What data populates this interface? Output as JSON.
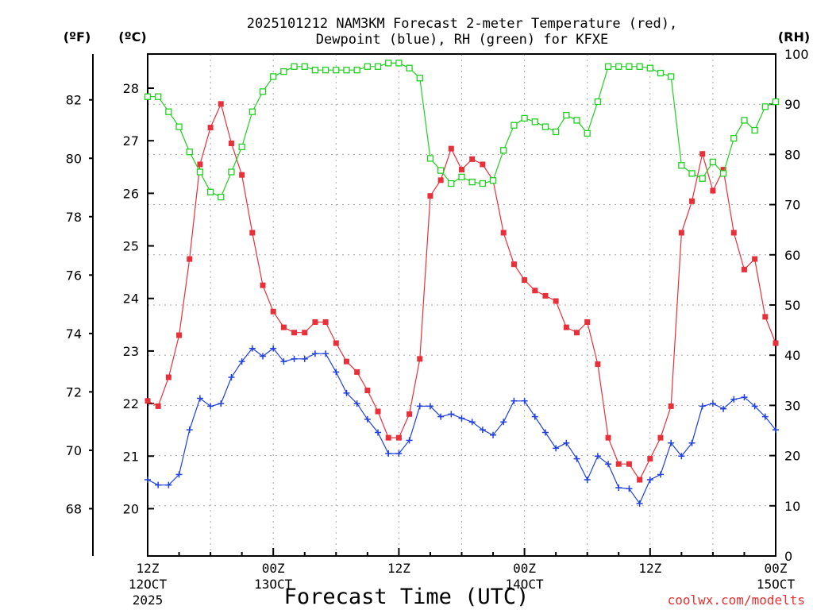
{
  "chart_data": {
    "type": "line",
    "title_line1": "2025101212 NAM3KM Forecast 2-meter Temperature (red),",
    "title_line2": "Dewpoint (blue), RH (green) for KFXE",
    "xlabel": "Forecast Time (UTC)",
    "credit": "coolwx.com/modelts",
    "axes": {
      "fahrenheit": {
        "label": "(ºF)",
        "ticks": [
          "68",
          "70",
          "72",
          "74",
          "76",
          "78",
          "80",
          "82"
        ]
      },
      "celsius": {
        "label": "(ºC)",
        "ticks": [
          "20",
          "21",
          "22",
          "23",
          "24",
          "25",
          "26",
          "27",
          "28"
        ],
        "ylim": [
          19.1,
          28.65
        ]
      },
      "rh": {
        "label": "(RH)",
        "ticks": [
          "0",
          "10",
          "20",
          "30",
          "40",
          "50",
          "60",
          "70",
          "80",
          "90",
          "100"
        ],
        "ylim": [
          0,
          100
        ]
      }
    },
    "x": {
      "start_hour": 0,
      "end_hour": 60,
      "step_hours": 1
    },
    "x_ticks": [
      {
        "hour": 0,
        "line1": "12Z",
        "line2": "12OCT",
        "line3": "2025"
      },
      {
        "hour": 12,
        "line1": "00Z",
        "line2": "13OCT",
        "line3": ""
      },
      {
        "hour": 24,
        "line1": "12Z",
        "line2": "",
        "line3": ""
      },
      {
        "hour": 36,
        "line1": "00Z",
        "line2": "14OCT",
        "line3": ""
      },
      {
        "hour": 48,
        "line1": "12Z",
        "line2": "",
        "line3": ""
      },
      {
        "hour": 60,
        "line1": "00Z",
        "line2": "15OCT",
        "line3": ""
      }
    ],
    "series": [
      {
        "name": "2-meter Temperature",
        "units": "C",
        "color": "#e8303a",
        "marker": "filled-square",
        "values": [
          22.05,
          21.95,
          22.5,
          23.3,
          24.75,
          26.55,
          27.25,
          27.7,
          26.95,
          26.35,
          25.25,
          24.25,
          23.75,
          23.45,
          23.35,
          23.35,
          23.55,
          23.55,
          23.15,
          22.8,
          22.6,
          22.25,
          21.85,
          21.35,
          21.35,
          21.8,
          22.85,
          25.95,
          26.25,
          26.85,
          26.45,
          26.65,
          26.55,
          26.25,
          25.25,
          24.65,
          24.35,
          24.15,
          24.05,
          23.95,
          23.45,
          23.35,
          23.55,
          22.75,
          21.35,
          20.85,
          20.85,
          20.55,
          20.95,
          21.35,
          21.95,
          25.25,
          25.85,
          26.75,
          26.05,
          26.45,
          25.25,
          24.55,
          24.75,
          23.65,
          23.15
        ]
      },
      {
        "name": "Dewpoint",
        "units": "C",
        "color": "#2040e0",
        "marker": "plus",
        "values": [
          20.55,
          20.45,
          20.45,
          20.65,
          21.5,
          22.1,
          21.95,
          22.0,
          22.5,
          22.8,
          23.05,
          22.9,
          23.05,
          22.8,
          22.85,
          22.85,
          22.95,
          22.95,
          22.6,
          22.2,
          22.0,
          21.7,
          21.45,
          21.05,
          21.05,
          21.3,
          21.95,
          21.95,
          21.75,
          21.8,
          21.72,
          21.65,
          21.5,
          21.4,
          21.65,
          22.05,
          22.05,
          21.75,
          21.45,
          21.15,
          21.25,
          20.95,
          20.55,
          21.0,
          20.85,
          20.4,
          20.38,
          20.1,
          20.55,
          20.65,
          21.25,
          21.0,
          21.25,
          21.95,
          22.0,
          21.9,
          22.08,
          22.12,
          21.95,
          21.75,
          21.5
        ]
      },
      {
        "name": "RH",
        "units": "%",
        "color": "#20d020",
        "marker": "open-square",
        "values": [
          91.5,
          91.5,
          88.5,
          85.5,
          80.5,
          76.5,
          72.5,
          71.5,
          76.5,
          81.5,
          88.5,
          92.5,
          95.5,
          96.5,
          97.5,
          97.5,
          96.8,
          96.8,
          96.8,
          96.8,
          96.8,
          97.5,
          97.5,
          98.2,
          98.2,
          97.2,
          95.2,
          79.2,
          76.8,
          74.2,
          75.5,
          74.5,
          74.2,
          74.8,
          80.8,
          85.8,
          87.2,
          86.5,
          85.5,
          84.5,
          87.8,
          86.8,
          84.2,
          90.5,
          97.5,
          97.5,
          97.5,
          97.5,
          97.2,
          96.2,
          95.5,
          77.8,
          76.2,
          75.2,
          78.5,
          76.2,
          83.2,
          86.8,
          84.8,
          89.5,
          90.5
        ]
      }
    ]
  }
}
